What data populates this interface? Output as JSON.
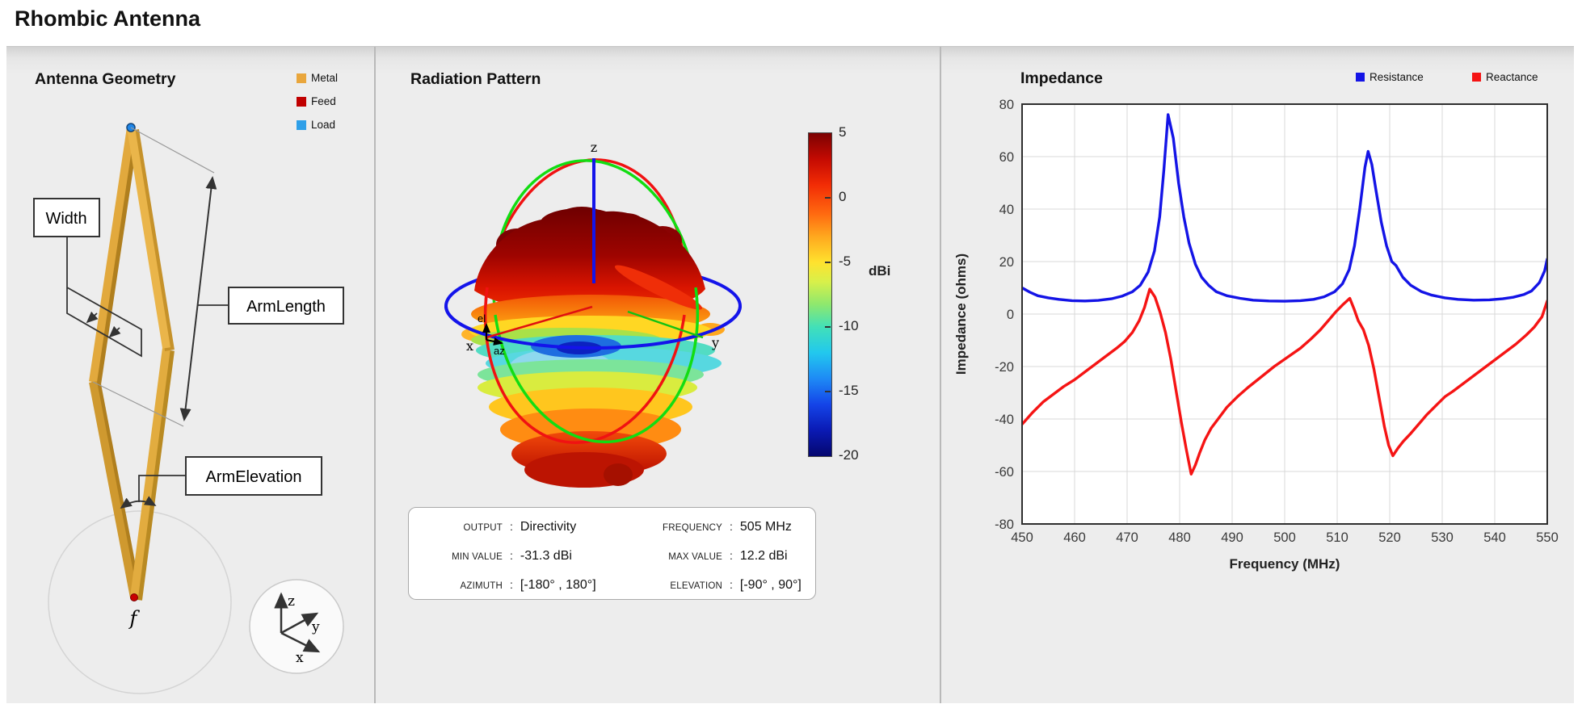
{
  "header": {
    "title": "Rhombic Antenna"
  },
  "geometry_panel": {
    "title": "Antenna Geometry",
    "legend": [
      {
        "label": "Metal",
        "color": "#E9A63C"
      },
      {
        "label": "Feed",
        "color": "#C00000"
      },
      {
        "label": "Load",
        "color": "#2E9FE8"
      }
    ],
    "annotations": {
      "width": "Width",
      "arm_length": "ArmLength",
      "arm_elevation": "ArmElevation",
      "feed_label": "f"
    },
    "triad_labels": {
      "x": "x",
      "y": "y",
      "z": "z"
    }
  },
  "pattern_panel": {
    "title": "Radiation Pattern",
    "axis_labels": {
      "x": "x",
      "y": "y",
      "z": "z",
      "el": "el",
      "az": "az"
    },
    "colorbar": {
      "label": "dBi",
      "ticks": [
        5,
        0,
        -5,
        -10,
        -15,
        -20
      ]
    },
    "info": {
      "separator": ":",
      "rows_left": [
        {
          "label": "OUTPUT",
          "value": "Directivity"
        },
        {
          "label": "MIN VALUE",
          "value": "-31.3 dBi"
        },
        {
          "label": "AZIMUTH",
          "value": "[-180° , 180°]"
        }
      ],
      "rows_right": [
        {
          "label": "FREQUENCY",
          "value": "505 MHz"
        },
        {
          "label": "MAX VALUE",
          "value": "12.2 dBi"
        },
        {
          "label": "ELEVATION",
          "value": "[-90° , 90°]"
        }
      ]
    }
  },
  "impedance_panel": {
    "title": "Impedance",
    "legend": [
      {
        "label": "Resistance",
        "color": "#1414E6"
      },
      {
        "label": "Reactance",
        "color": "#F51414"
      }
    ]
  },
  "chart_data": {
    "type": "line",
    "title": "Impedance",
    "xlabel": "Frequency (MHz)",
    "ylabel": "Impedance (ohms)",
    "xlim": [
      450,
      550
    ],
    "ylim": [
      -80,
      80
    ],
    "xticks": [
      450,
      460,
      470,
      480,
      490,
      500,
      510,
      520,
      530,
      540,
      550
    ],
    "yticks": [
      80,
      60,
      40,
      20,
      0,
      -20,
      -40,
      -60,
      -80
    ],
    "grid": true,
    "legend_position": "top-right",
    "series": [
      {
        "name": "Resistance",
        "color": "#1414E6",
        "points": [
          [
            450,
            10
          ],
          [
            451.5,
            8.3
          ],
          [
            453,
            7
          ],
          [
            455,
            6.2
          ],
          [
            457,
            5.6
          ],
          [
            459.5,
            5.1
          ],
          [
            462,
            5
          ],
          [
            464.5,
            5.2
          ],
          [
            467,
            5.8
          ],
          [
            469,
            6.8
          ],
          [
            471,
            8.5
          ],
          [
            472.5,
            11
          ],
          [
            474,
            16
          ],
          [
            475.2,
            24
          ],
          [
            476.2,
            37
          ],
          [
            477,
            55
          ],
          [
            477.8,
            76
          ],
          [
            478.8,
            67
          ],
          [
            479.8,
            50
          ],
          [
            480.8,
            37
          ],
          [
            481.8,
            27
          ],
          [
            483,
            19
          ],
          [
            484.2,
            14
          ],
          [
            485.5,
            11
          ],
          [
            487,
            8.5
          ],
          [
            489,
            7
          ],
          [
            491.5,
            6
          ],
          [
            494,
            5.3
          ],
          [
            497,
            5
          ],
          [
            500,
            4.9
          ],
          [
            503,
            5.1
          ],
          [
            505.5,
            5.6
          ],
          [
            507.5,
            6.6
          ],
          [
            509.5,
            8.5
          ],
          [
            511,
            11.5
          ],
          [
            512.3,
            17
          ],
          [
            513.3,
            26
          ],
          [
            514.3,
            40
          ],
          [
            515.3,
            56
          ],
          [
            515.9,
            62
          ],
          [
            516.6,
            57
          ],
          [
            517.4,
            47
          ],
          [
            518.4,
            35
          ],
          [
            519.4,
            26
          ],
          [
            520.4,
            20
          ],
          [
            521.2,
            18.5
          ],
          [
            522.5,
            14
          ],
          [
            524,
            11
          ],
          [
            526,
            8.6
          ],
          [
            528,
            7.2
          ],
          [
            530.5,
            6.2
          ],
          [
            533,
            5.6
          ],
          [
            536,
            5.3
          ],
          [
            539,
            5.4
          ],
          [
            541.5,
            5.8
          ],
          [
            543.5,
            6.4
          ],
          [
            545.5,
            7.4
          ],
          [
            547,
            8.8
          ],
          [
            548.5,
            12
          ],
          [
            549.5,
            16.5
          ],
          [
            550,
            21
          ]
        ]
      },
      {
        "name": "Reactance",
        "color": "#F51414",
        "points": [
          [
            450,
            -42
          ],
          [
            452,
            -37.5
          ],
          [
            454,
            -33.5
          ],
          [
            456,
            -30.5
          ],
          [
            458,
            -27.5
          ],
          [
            460,
            -25
          ],
          [
            462,
            -22
          ],
          [
            464,
            -19
          ],
          [
            466,
            -16
          ],
          [
            468,
            -13
          ],
          [
            469.5,
            -10.5
          ],
          [
            471,
            -7
          ],
          [
            472.3,
            -2.5
          ],
          [
            473.3,
            2.5
          ],
          [
            474.3,
            9.5
          ],
          [
            475.3,
            6.5
          ],
          [
            476.3,
            0.5
          ],
          [
            477.3,
            -7
          ],
          [
            478.3,
            -17
          ],
          [
            479.3,
            -29
          ],
          [
            480.3,
            -41
          ],
          [
            481.3,
            -52
          ],
          [
            482.2,
            -61
          ],
          [
            483,
            -57.5
          ],
          [
            483.8,
            -53
          ],
          [
            484.8,
            -48
          ],
          [
            486,
            -43.5
          ],
          [
            487.5,
            -39.5
          ],
          [
            489,
            -35.5
          ],
          [
            491,
            -31.5
          ],
          [
            493,
            -28
          ],
          [
            495.5,
            -24
          ],
          [
            498,
            -20
          ],
          [
            500.5,
            -16.5
          ],
          [
            503,
            -13
          ],
          [
            505,
            -9.5
          ],
          [
            506.8,
            -6
          ],
          [
            508.3,
            -2.5
          ],
          [
            509.8,
            1
          ],
          [
            511.2,
            3.8
          ],
          [
            512.4,
            6
          ],
          [
            513.2,
            2
          ],
          [
            514,
            -2.5
          ],
          [
            515,
            -6
          ],
          [
            516,
            -12
          ],
          [
            517,
            -21
          ],
          [
            518,
            -32
          ],
          [
            519,
            -43
          ],
          [
            519.8,
            -50
          ],
          [
            520.6,
            -54
          ],
          [
            521.6,
            -51
          ],
          [
            522.6,
            -48.5
          ],
          [
            524,
            -45.5
          ],
          [
            525.5,
            -42
          ],
          [
            527,
            -38.5
          ],
          [
            529,
            -34.5
          ],
          [
            530.5,
            -31.5
          ],
          [
            532,
            -29.5
          ],
          [
            534,
            -26.5
          ],
          [
            536,
            -23.5
          ],
          [
            538,
            -20.5
          ],
          [
            540,
            -17.5
          ],
          [
            542,
            -14.5
          ],
          [
            544,
            -11.5
          ],
          [
            546,
            -8
          ],
          [
            547.5,
            -5
          ],
          [
            549,
            -1
          ],
          [
            550,
            5
          ]
        ]
      }
    ]
  }
}
